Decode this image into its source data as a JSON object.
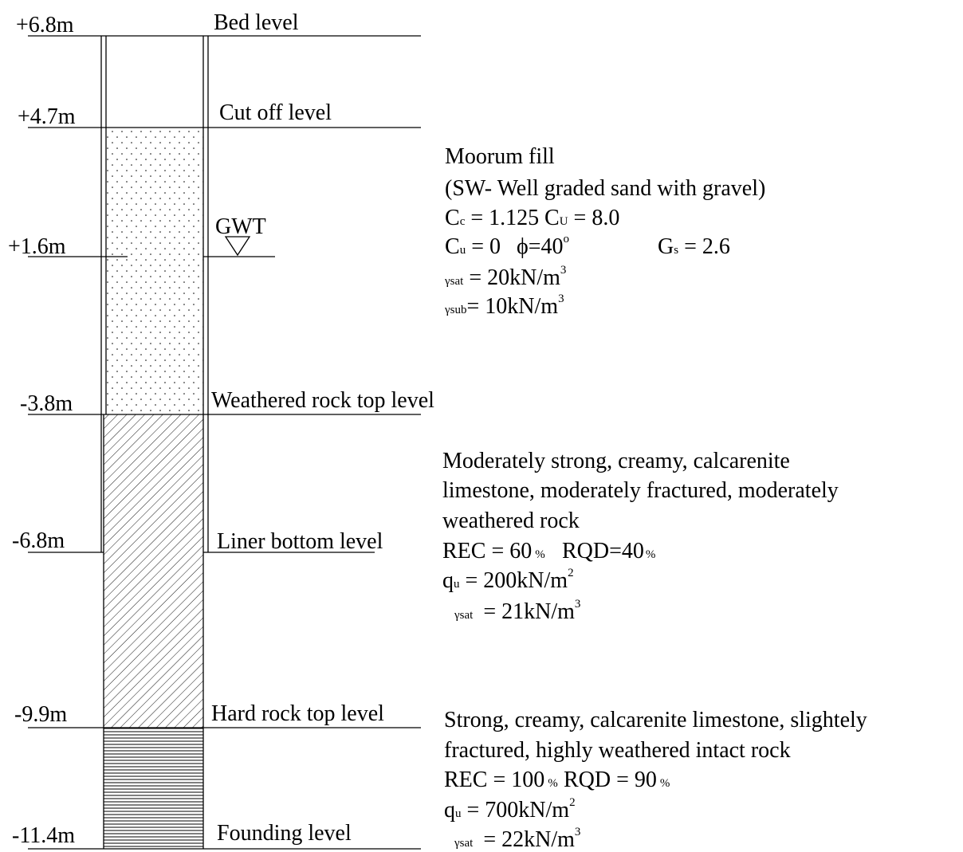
{
  "levels": [
    {
      "elevation": "+6.8m",
      "name": "Bed level"
    },
    {
      "elevation": "+4.7m",
      "name": "Cut off level"
    },
    {
      "elevation": "+1.6m",
      "name": "GWT"
    },
    {
      "elevation": "-3.8m",
      "name": "Weathered rock top level"
    },
    {
      "elevation": "-6.8m",
      "name": "Liner bottom level"
    },
    {
      "elevation": "-9.9m",
      "name": "Hard rock top level"
    },
    {
      "elevation": "-11.4m",
      "name": "Founding level"
    }
  ],
  "layers": [
    {
      "lines": [
        "Moorum fill",
        "(SW- Well graded sand with gravel)",
        [
          "C",
          "c",
          " = 1.125",
          "C",
          "U",
          " = 8.0"
        ],
        [
          "C",
          "u",
          " = 0",
          "ϕ",
          "=40",
          "o",
          "G",
          "s",
          " = 2.6"
        ],
        [
          "γ",
          "sat",
          " = 20kN/m",
          "3"
        ],
        [
          "γ",
          "sub",
          "= 10kN/m",
          "3"
        ]
      ]
    },
    {
      "lines": [
        "Moderately strong, creamy, calcarenite",
        "limestone, moderately fractured, moderately",
        "weathered rock",
        [
          "REC = 60",
          "%",
          "RQD=40",
          "%"
        ],
        [
          "q",
          "u",
          " = 200kN/m",
          "2"
        ],
        [
          "γ",
          "sat",
          " = 21kN/m",
          "3"
        ]
      ]
    },
    {
      "lines": [
        "Strong, creamy, calcarenite limestone, slightely",
        "fractured, highly weathered intact rock",
        [
          "REC = 100",
          "%",
          "RQD = 90",
          "%"
        ],
        [
          "q",
          "u",
          " = 700kN/m",
          "2"
        ],
        [
          "γ",
          "sat",
          " = 22kN/m",
          "3"
        ]
      ]
    }
  ]
}
